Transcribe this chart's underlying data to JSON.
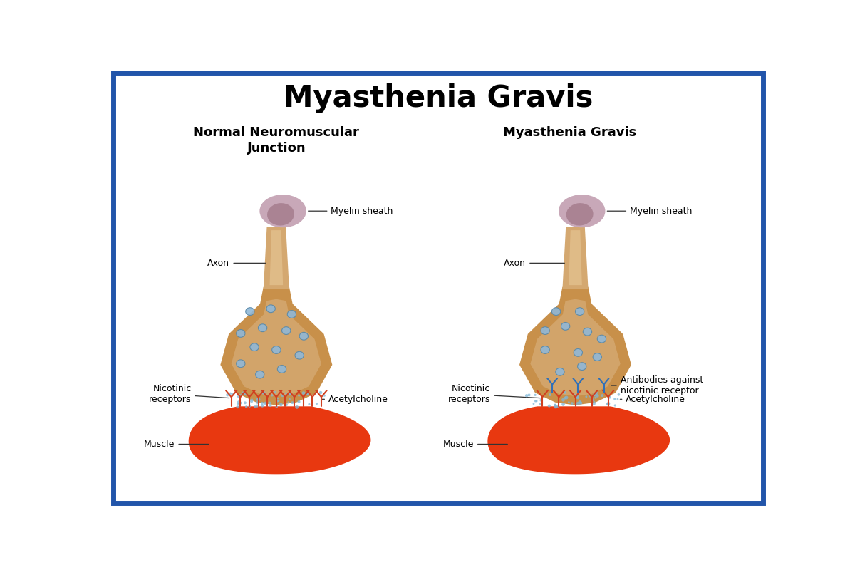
{
  "title": "Myasthenia Gravis",
  "left_subtitle": "Normal Neuromuscular\nJunction",
  "right_subtitle": "Myasthenia Gravis",
  "bg_color": "#ffffff",
  "border_color": "#2255aa",
  "title_fontsize": 30,
  "subtitle_fontsize": 13,
  "label_fontsize": 9,
  "myelin_color": "#c8a8b8",
  "myelin_dark": "#9a7080",
  "axon_outer_color": "#d4a870",
  "axon_inner_color": "#e8c898",
  "terminal_outer_color": "#c8904a",
  "terminal_inner_color": "#d4a870",
  "vesicle_color": "#90b8d8",
  "vesicle_border": "#5888a8",
  "ach_color": "#80b8d8",
  "muscle_color": "#e83810",
  "muscle_dark": "#c02000",
  "receptor_color": "#d04020",
  "antibody_color": "#3070b8"
}
